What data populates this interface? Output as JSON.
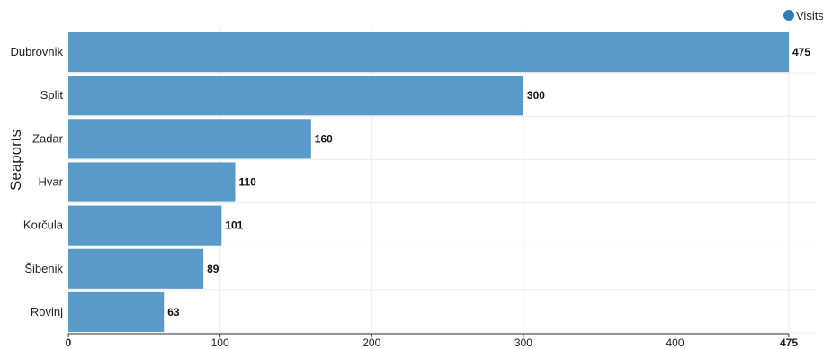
{
  "chart_data": {
    "type": "bar",
    "orientation": "horizontal",
    "categories": [
      "Dubrovnik",
      "Split",
      "Zadar",
      "Hvar",
      "Korčula",
      "Šibenik",
      "Rovinj"
    ],
    "series": [
      {
        "name": "Visits",
        "values": [
          475,
          300,
          160,
          110,
          101,
          89,
          63
        ]
      }
    ],
    "xlabel": "",
    "ylabel": "Seaports",
    "xlim": [
      0,
      475
    ],
    "xticks": [
      0,
      100,
      200,
      300,
      400,
      475
    ],
    "xtick_labels": [
      "0",
      "100",
      "200",
      "300",
      "400",
      "475"
    ],
    "grid": true,
    "legend": "top-right",
    "colors": {
      "bar": "#5a9ac8",
      "legend_dot": "#2e7bb8",
      "grid": "#ececec"
    }
  }
}
